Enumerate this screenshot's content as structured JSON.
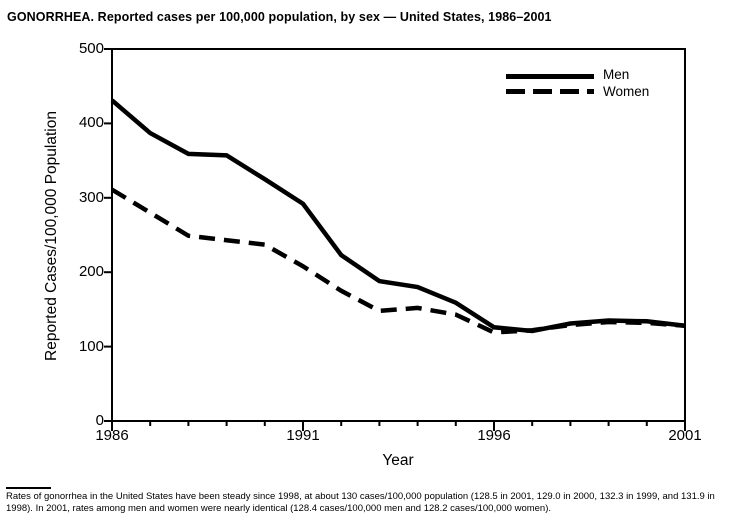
{
  "title": "GONORRHEA. Reported cases per 100,000 population, by sex — United States, 1986–2001",
  "chart_data": {
    "type": "line",
    "title": "GONORRHEA. Reported cases per 100,000 population, by sex — United States, 1986–2001",
    "xlabel": "Year",
    "ylabel": "Reported Cases/100,000 Population",
    "x": [
      1986,
      1987,
      1988,
      1989,
      1990,
      1991,
      1992,
      1993,
      1994,
      1995,
      1996,
      1997,
      1998,
      1999,
      2000,
      2001
    ],
    "series": [
      {
        "name": "Men",
        "line_style": "solid",
        "values": [
          431,
          387,
          359,
          357,
          325,
          292,
          223,
          188,
          180,
          159,
          126,
          121,
          131,
          135,
          134,
          128
        ]
      },
      {
        "name": "Women",
        "line_style": "dashed",
        "values": [
          311,
          280,
          249,
          243,
          237,
          208,
          175,
          148,
          152,
          143,
          119,
          122,
          129,
          133,
          132,
          128
        ]
      }
    ],
    "xlim": [
      1986,
      2001
    ],
    "ylim": [
      0,
      500
    ],
    "y_ticks": [
      0,
      100,
      200,
      300,
      400,
      500
    ],
    "x_minor_tick_every": 1,
    "x_major_ticks": [
      1986,
      1991,
      1996,
      2001
    ],
    "grid": "off",
    "legend_position": "top-right-inside",
    "line_color": "#000000",
    "frame": "full-box"
  },
  "legend": {
    "items": [
      {
        "label": "Men"
      },
      {
        "label": "Women"
      }
    ]
  },
  "footnote": {
    "text": "Rates of gonorrhea in the United States have been steady since 1998, at about 130 cases/100,000 population (128.5 in 2001, 129.0 in 2000, 132.3 in 1999, and 131.9 in 1998). In 2001, rates among men and women were nearly identical (128.4 cases/100,000 men and 128.2 cases/100,000 women)."
  }
}
